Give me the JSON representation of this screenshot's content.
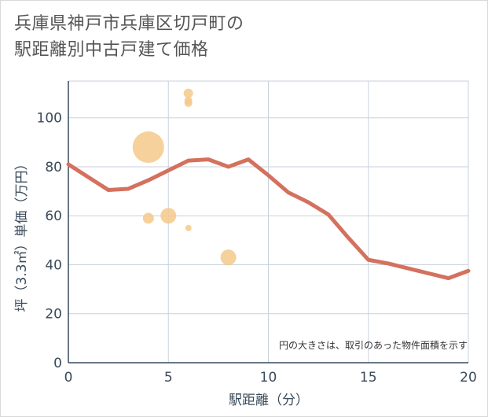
{
  "title_lines": [
    "兵庫県神戸市兵庫区切戸町の",
    "駅距離別中古戸建て価格"
  ],
  "chart_data": {
    "type": "scatter",
    "title": "兵庫県神戸市兵庫区切戸町の駅距離別中古戸建て価格",
    "xlabel": "駅距離（分）",
    "ylabel": "坪（3.3㎡）単価（万円）",
    "xlim": [
      0,
      20
    ],
    "ylim": [
      0,
      115
    ],
    "xticks": [
      0,
      5,
      10,
      15,
      20
    ],
    "yticks": [
      0,
      20,
      40,
      60,
      80,
      100
    ],
    "grid": true,
    "note": "円の大きさは、取引のあった物件面積を示す",
    "scatter": [
      {
        "x": 4,
        "y": 88,
        "size": 20
      },
      {
        "x": 4,
        "y": 59,
        "size": 7
      },
      {
        "x": 5,
        "y": 60,
        "size": 10
      },
      {
        "x": 6,
        "y": 110,
        "size": 6
      },
      {
        "x": 6,
        "y": 107,
        "size": 5
      },
      {
        "x": 6,
        "y": 106,
        "size": 5
      },
      {
        "x": 6,
        "y": 55,
        "size": 4
      },
      {
        "x": 8,
        "y": 43,
        "size": 10
      }
    ],
    "line": {
      "x": [
        0,
        2,
        3,
        4,
        5,
        6,
        7,
        8,
        9,
        10,
        11,
        12,
        13,
        14,
        15,
        16,
        17,
        18,
        19,
        20
      ],
      "y": [
        81,
        70.5,
        71,
        74.5,
        78.5,
        82.5,
        83,
        80,
        83,
        76.5,
        69.5,
        65.5,
        60.5,
        51,
        42,
        40.5,
        38.5,
        36.5,
        34.5,
        37.5
      ]
    },
    "colors": {
      "line": "#d4715e",
      "bubble": "#f5c98a",
      "grid": "#c8d2dc",
      "axis": "#3a4a5a"
    }
  }
}
